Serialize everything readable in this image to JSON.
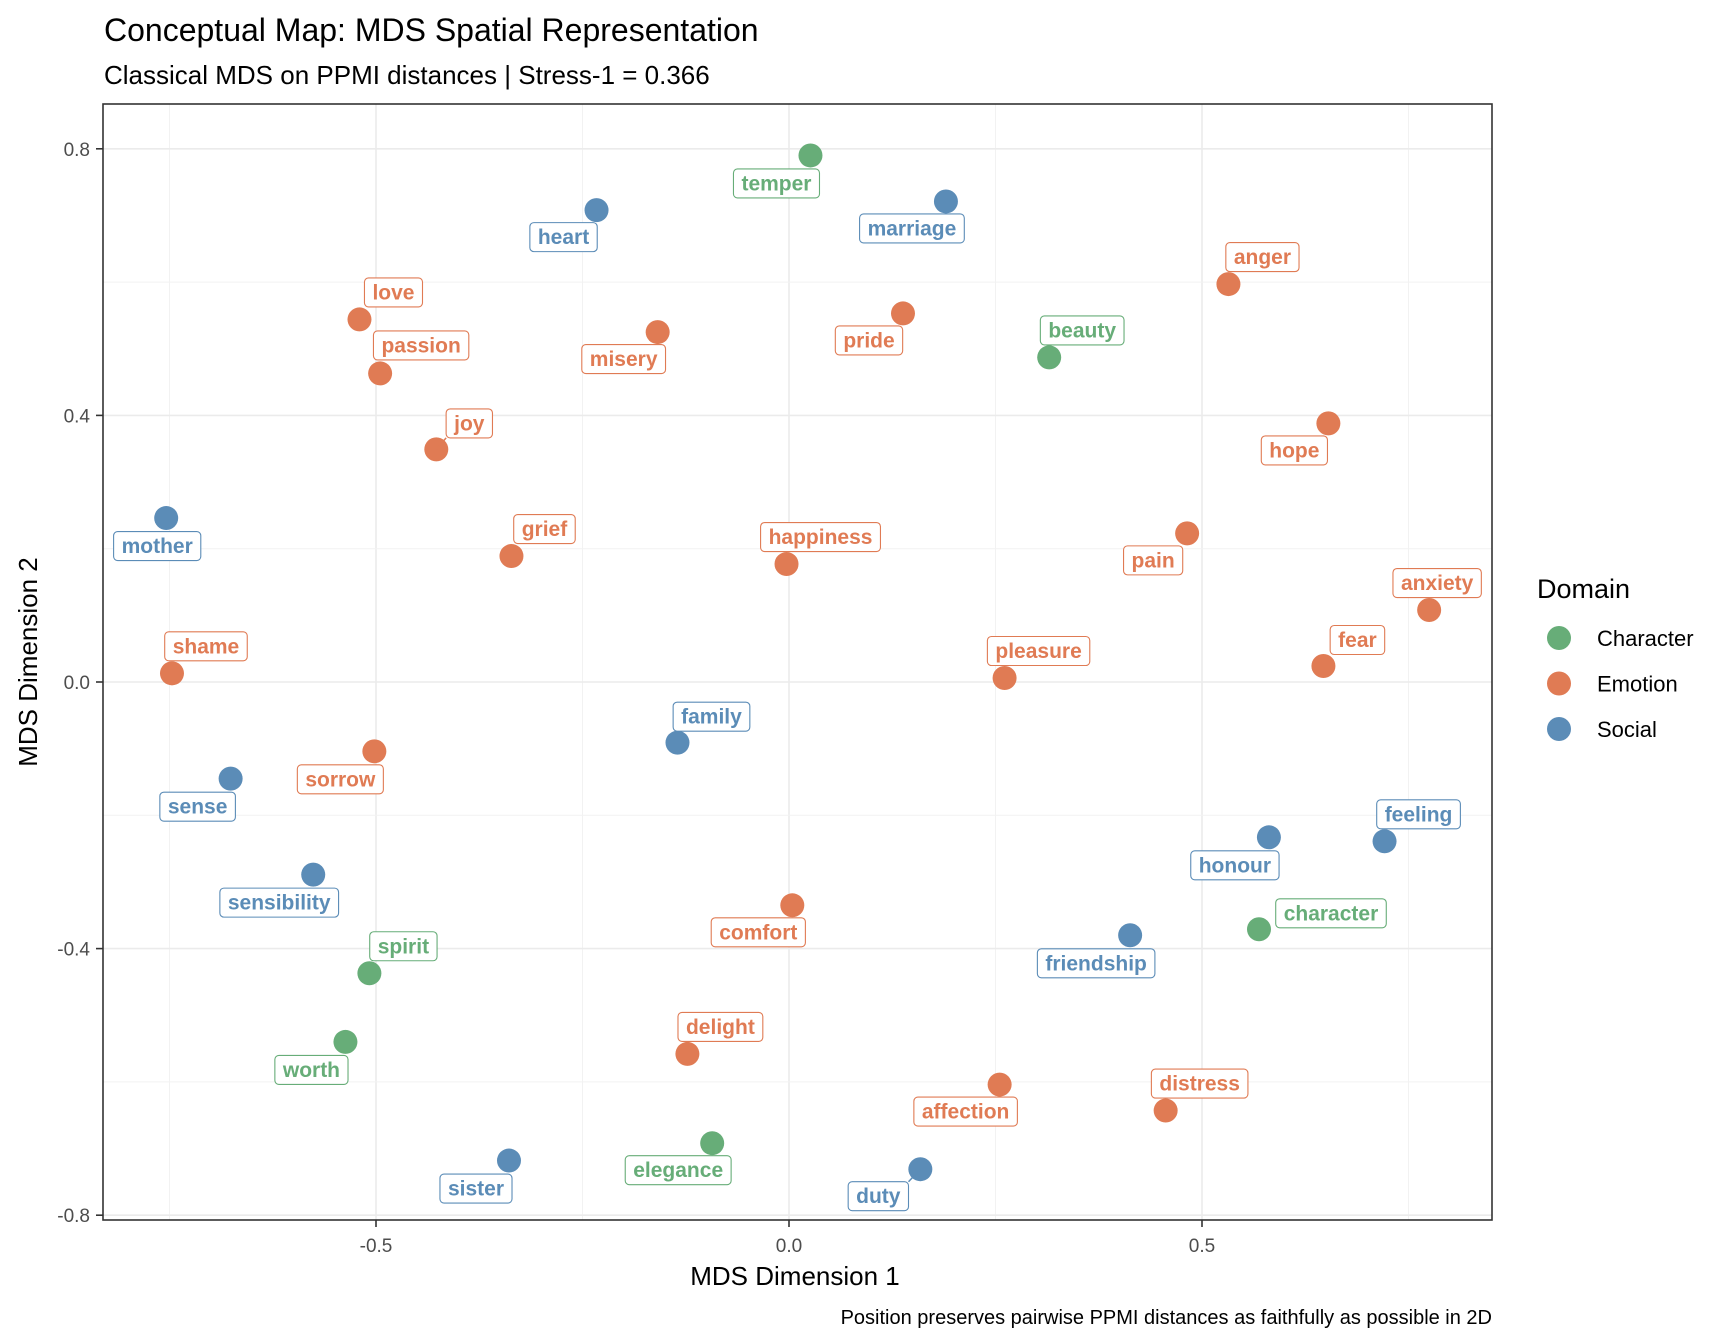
{
  "chart_data": {
    "type": "scatter",
    "title": "Conceptual Map: MDS Spatial Representation",
    "subtitle": "Classical MDS on PPMI distances | Stress-1 = 0.366",
    "caption": "Position preserves pairwise PPMI distances as faithfully as possible in 2D",
    "xlabel": "MDS Dimension 1",
    "ylabel": "MDS Dimension 2",
    "xlim": [
      -0.83,
      0.85
    ],
    "ylim": [
      -0.82,
      0.87
    ],
    "x_ticks": [
      {
        "value": -0.5,
        "label": "-0.5"
      },
      {
        "value": 0.0,
        "label": "0.0"
      },
      {
        "value": 0.5,
        "label": "0.5"
      }
    ],
    "y_ticks": [
      {
        "value": -0.8,
        "label": "-0.8"
      },
      {
        "value": -0.4,
        "label": "-0.4"
      },
      {
        "value": 0.0,
        "label": "0.0"
      },
      {
        "value": 0.4,
        "label": "0.4"
      },
      {
        "value": 0.8,
        "label": "0.8"
      }
    ],
    "grid": true,
    "legend": {
      "title": "Domain",
      "position": "right",
      "entries": [
        {
          "name": "Character",
          "color": "#67AD78"
        },
        {
          "name": "Emotion",
          "color": "#E07B54"
        },
        {
          "name": "Social",
          "color": "#5B8CB7"
        }
      ]
    },
    "points": [
      {
        "label": "temper",
        "domain": "Character",
        "x": 0.026,
        "y": 0.79
      },
      {
        "label": "heart",
        "domain": "Social",
        "x": -0.233,
        "y": 0.708
      },
      {
        "label": "marriage",
        "domain": "Social",
        "x": 0.19,
        "y": 0.721
      },
      {
        "label": "anger",
        "domain": "Emotion",
        "x": 0.532,
        "y": 0.597
      },
      {
        "label": "love",
        "domain": "Emotion",
        "x": -0.52,
        "y": 0.544
      },
      {
        "label": "passion",
        "domain": "Emotion",
        "x": -0.495,
        "y": 0.463
      },
      {
        "label": "misery",
        "domain": "Emotion",
        "x": -0.159,
        "y": 0.525
      },
      {
        "label": "pride",
        "domain": "Emotion",
        "x": 0.138,
        "y": 0.553
      },
      {
        "label": "beauty",
        "domain": "Character",
        "x": 0.315,
        "y": 0.487
      },
      {
        "label": "joy",
        "domain": "Emotion",
        "x": -0.427,
        "y": 0.349
      },
      {
        "label": "hope",
        "domain": "Emotion",
        "x": 0.653,
        "y": 0.388
      },
      {
        "label": "mother",
        "domain": "Social",
        "x": -0.754,
        "y": 0.246
      },
      {
        "label": "grief",
        "domain": "Emotion",
        "x": -0.336,
        "y": 0.189
      },
      {
        "label": "happiness",
        "domain": "Emotion",
        "x": -0.003,
        "y": 0.177
      },
      {
        "label": "pain",
        "domain": "Emotion",
        "x": 0.482,
        "y": 0.223
      },
      {
        "label": "anxiety",
        "domain": "Emotion",
        "x": 0.775,
        "y": 0.108
      },
      {
        "label": "shame",
        "domain": "Emotion",
        "x": -0.747,
        "y": 0.013
      },
      {
        "label": "pleasure",
        "domain": "Emotion",
        "x": 0.261,
        "y": 0.006
      },
      {
        "label": "fear",
        "domain": "Emotion",
        "x": 0.647,
        "y": 0.024
      },
      {
        "label": "family",
        "domain": "Social",
        "x": -0.135,
        "y": -0.091
      },
      {
        "label": "sorrow",
        "domain": "Emotion",
        "x": -0.502,
        "y": -0.104
      },
      {
        "label": "sense",
        "domain": "Social",
        "x": -0.676,
        "y": -0.145
      },
      {
        "label": "honour",
        "domain": "Social",
        "x": 0.581,
        "y": -0.233
      },
      {
        "label": "feeling",
        "domain": "Social",
        "x": 0.721,
        "y": -0.239
      },
      {
        "label": "sensibility",
        "domain": "Social",
        "x": -0.576,
        "y": -0.289
      },
      {
        "label": "comfort",
        "domain": "Emotion",
        "x": 0.004,
        "y": -0.335
      },
      {
        "label": "character",
        "domain": "Character",
        "x": 0.569,
        "y": -0.371
      },
      {
        "label": "friendship",
        "domain": "Social",
        "x": 0.413,
        "y": -0.38
      },
      {
        "label": "spirit",
        "domain": "Character",
        "x": -0.508,
        "y": -0.437
      },
      {
        "label": "worth",
        "domain": "Character",
        "x": -0.537,
        "y": -0.54
      },
      {
        "label": "delight",
        "domain": "Emotion",
        "x": -0.123,
        "y": -0.558
      },
      {
        "label": "affection",
        "domain": "Emotion",
        "x": 0.255,
        "y": -0.604
      },
      {
        "label": "distress",
        "domain": "Emotion",
        "x": 0.456,
        "y": -0.643
      },
      {
        "label": "elegance",
        "domain": "Character",
        "x": -0.093,
        "y": -0.692
      },
      {
        "label": "sister",
        "domain": "Social",
        "x": -0.339,
        "y": -0.718
      },
      {
        "label": "duty",
        "domain": "Social",
        "x": 0.159,
        "y": -0.731
      }
    ]
  }
}
